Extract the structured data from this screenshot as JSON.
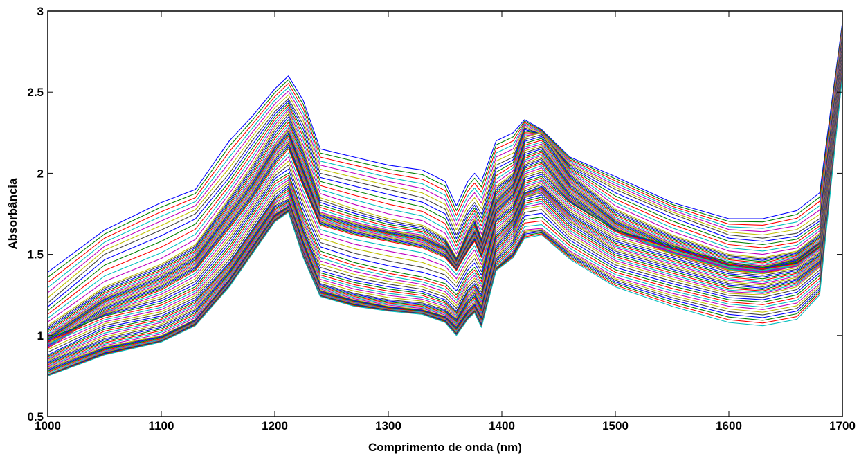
{
  "chart_data": {
    "type": "line",
    "title": "",
    "xlabel": "Comprimento de onda (nm)",
    "ylabel": "Absorbância",
    "xlim": [
      1000,
      1700
    ],
    "ylim": [
      0.5,
      3
    ],
    "x_ticks": [
      1000,
      1100,
      1200,
      1300,
      1400,
      1500,
      1600,
      1700
    ],
    "x_tick_labels": [
      "1000",
      "1100",
      "1200",
      "1300",
      "1400",
      "1500",
      "1600",
      "1700"
    ],
    "y_ticks": [
      0.5,
      1,
      1.5,
      2,
      2.5,
      3
    ],
    "y_tick_labels": [
      "0.5",
      "1",
      "1.5",
      "2",
      "2.5",
      "3"
    ],
    "grid": false,
    "legend": "none",
    "series_colors": [
      "#0000ff",
      "#008000",
      "#ff0000",
      "#00bfbf",
      "#bf00bf",
      "#bfbf00",
      "#404040"
    ],
    "x": [
      1000,
      1050,
      1100,
      1130,
      1160,
      1180,
      1200,
      1212,
      1225,
      1240,
      1270,
      1300,
      1330,
      1350,
      1360,
      1370,
      1376,
      1382,
      1395,
      1410,
      1420,
      1435,
      1460,
      1500,
      1550,
      1600,
      1630,
      1660,
      1680,
      1700
    ],
    "series": [
      {
        "values": [
          1.39,
          1.65,
          1.82,
          1.9,
          2.2,
          2.35,
          2.52,
          2.6,
          2.45,
          2.15,
          2.1,
          2.05,
          2.02,
          1.95,
          1.8,
          1.95,
          2.0,
          1.95,
          2.2,
          2.25,
          2.33,
          2.27,
          2.1,
          1.98,
          1.82,
          1.72,
          1.72,
          1.77,
          1.88,
          2.93
        ]
      },
      {
        "values": [
          1.2,
          1.5,
          1.65,
          1.75,
          2.0,
          2.2,
          2.38,
          2.46,
          2.3,
          2.0,
          1.95,
          1.9,
          1.85,
          1.78,
          1.62,
          1.77,
          1.82,
          1.75,
          2.05,
          2.1,
          2.28,
          2.24,
          2.05,
          1.9,
          1.75,
          1.62,
          1.6,
          1.63,
          1.72,
          2.85
        ]
      },
      {
        "values": [
          1.06,
          1.3,
          1.44,
          1.56,
          1.85,
          2.05,
          2.28,
          2.38,
          2.15,
          1.85,
          1.78,
          1.72,
          1.68,
          1.6,
          1.48,
          1.65,
          1.72,
          1.6,
          1.92,
          2.0,
          2.22,
          2.25,
          2.0,
          1.78,
          1.62,
          1.5,
          1.48,
          1.52,
          1.63,
          2.8
        ]
      },
      {
        "values": [
          1.0,
          1.24,
          1.38,
          1.5,
          1.78,
          1.96,
          2.18,
          2.28,
          2.05,
          1.76,
          1.7,
          1.65,
          1.62,
          1.55,
          1.44,
          1.58,
          1.65,
          1.55,
          1.85,
          1.95,
          2.15,
          2.18,
          1.95,
          1.72,
          1.57,
          1.45,
          1.43,
          1.48,
          1.58,
          2.78
        ]
      },
      {
        "values": [
          0.96,
          1.2,
          1.33,
          1.45,
          1.72,
          1.9,
          2.12,
          2.22,
          1.98,
          1.72,
          1.66,
          1.62,
          1.58,
          1.52,
          1.42,
          1.55,
          1.62,
          1.52,
          1.8,
          1.9,
          2.08,
          2.12,
          1.9,
          1.68,
          1.53,
          1.42,
          1.4,
          1.45,
          1.56,
          2.76
        ]
      },
      {
        "values": [
          0.92,
          1.15,
          1.28,
          1.4,
          1.66,
          1.84,
          2.05,
          2.15,
          1.92,
          1.68,
          1.62,
          1.58,
          1.54,
          1.48,
          1.4,
          1.52,
          1.58,
          1.48,
          1.75,
          1.85,
          2.02,
          2.06,
          1.85,
          1.64,
          1.5,
          1.4,
          1.38,
          1.43,
          1.54,
          2.75
        ]
      },
      {
        "values": [
          0.98,
          1.12,
          1.2,
          1.3,
          1.55,
          1.75,
          1.95,
          2.0,
          1.75,
          1.52,
          1.45,
          1.4,
          1.36,
          1.32,
          1.25,
          1.38,
          1.42,
          1.35,
          1.7,
          1.78,
          1.95,
          1.98,
          1.82,
          1.65,
          1.55,
          1.45,
          1.42,
          1.45,
          1.55,
          2.74
        ]
      },
      {
        "values": [
          0.88,
          1.05,
          1.12,
          1.22,
          1.45,
          1.65,
          1.85,
          1.92,
          1.65,
          1.4,
          1.34,
          1.3,
          1.27,
          1.22,
          1.15,
          1.28,
          1.32,
          1.25,
          1.62,
          1.72,
          1.88,
          1.92,
          1.75,
          1.58,
          1.48,
          1.38,
          1.36,
          1.4,
          1.5,
          2.72
        ]
      },
      {
        "values": [
          0.84,
          0.98,
          1.06,
          1.16,
          1.4,
          1.6,
          1.8,
          1.84,
          1.58,
          1.32,
          1.26,
          1.22,
          1.2,
          1.16,
          1.1,
          1.22,
          1.26,
          1.18,
          1.55,
          1.68,
          1.85,
          1.88,
          1.7,
          1.52,
          1.42,
          1.32,
          1.3,
          1.35,
          1.46,
          2.7
        ]
      },
      {
        "values": [
          0.8,
          0.93,
          1.0,
          1.1,
          1.35,
          1.55,
          1.75,
          1.8,
          1.52,
          1.28,
          1.22,
          1.18,
          1.16,
          1.12,
          1.06,
          1.16,
          1.2,
          1.12,
          1.48,
          1.6,
          1.78,
          1.8,
          1.62,
          1.45,
          1.35,
          1.26,
          1.25,
          1.3,
          1.42,
          2.68
        ]
      },
      {
        "values": [
          0.76,
          0.9,
          0.97,
          1.08,
          1.32,
          1.52,
          1.72,
          1.78,
          1.5,
          1.25,
          1.2,
          1.16,
          1.14,
          1.1,
          1.02,
          1.12,
          1.16,
          1.08,
          1.42,
          1.52,
          1.65,
          1.66,
          1.52,
          1.36,
          1.26,
          1.18,
          1.16,
          1.2,
          1.32,
          2.65
        ]
      },
      {
        "values": [
          0.75,
          0.88,
          0.96,
          1.06,
          1.3,
          1.5,
          1.7,
          1.76,
          1.48,
          1.24,
          1.18,
          1.15,
          1.13,
          1.08,
          1.0,
          1.1,
          1.14,
          1.05,
          1.4,
          1.48,
          1.6,
          1.62,
          1.47,
          1.3,
          1.18,
          1.08,
          1.06,
          1.1,
          1.25,
          2.6
        ]
      }
    ]
  }
}
